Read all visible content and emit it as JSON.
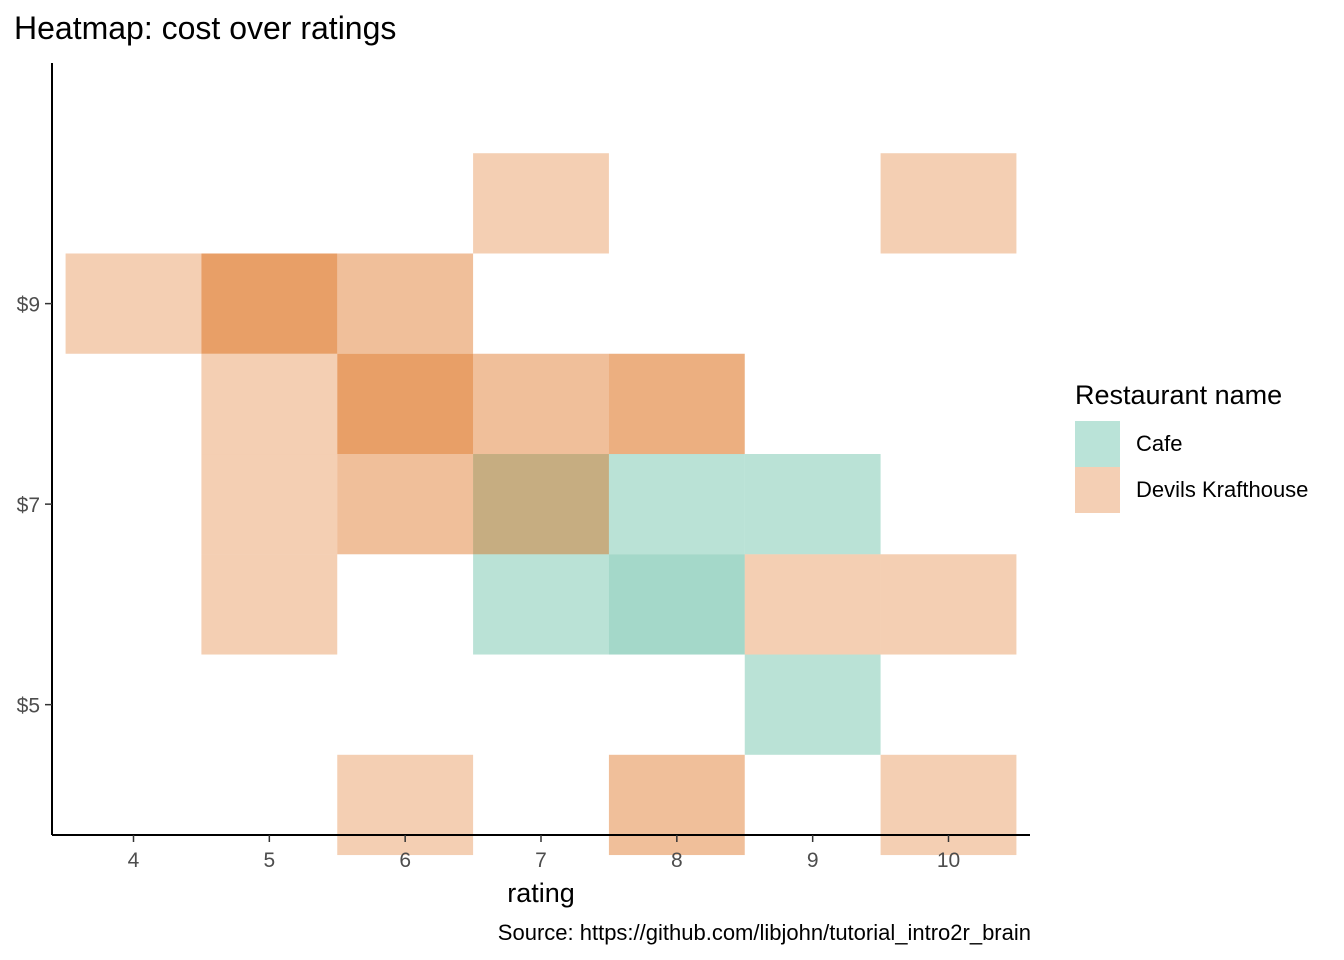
{
  "chart_data": {
    "type": "heatmap",
    "title": "Heatmap: cost over ratings",
    "xlabel": "rating",
    "ylabel": "",
    "caption": "Source: https://github.com/libjohn/tutorial_intro2r_brain",
    "x_ticks": [
      4,
      5,
      6,
      7,
      8,
      9,
      10
    ],
    "x_tick_labels": [
      "4",
      "5",
      "6",
      "7",
      "8",
      "9",
      "10"
    ],
    "y_ticks": [
      5,
      7,
      9
    ],
    "y_tick_labels": [
      "$5",
      "$7",
      "$9"
    ],
    "xlim": [
      3.4,
      10.6
    ],
    "ylim": [
      3.7,
      11.4
    ],
    "bin_width": 1,
    "legend": {
      "title": "Restaurant name",
      "placement": "right",
      "entries": [
        {
          "name": "Cafe",
          "color": "#bae3d8"
        },
        {
          "name": "Devils Krafthouse",
          "color": "#f4cfb4"
        }
      ]
    },
    "series": [
      {
        "name": "Cafe",
        "color": "#1b9e77",
        "cells": [
          {
            "rating": 7,
            "cost": 7,
            "count": 1
          },
          {
            "rating": 8,
            "cost": 7,
            "count": 1
          },
          {
            "rating": 9,
            "cost": 7,
            "count": 1
          },
          {
            "rating": 7,
            "cost": 6,
            "count": 1
          },
          {
            "rating": 8,
            "cost": 6,
            "count": 2
          },
          {
            "rating": 9,
            "cost": 5,
            "count": 1
          }
        ]
      },
      {
        "name": "Devils Krafthouse",
        "color": "#d95f02",
        "cells": [
          {
            "rating": 7,
            "cost": 10,
            "count": 1
          },
          {
            "rating": 10,
            "cost": 10,
            "count": 1
          },
          {
            "rating": 4,
            "cost": 9,
            "count": 1
          },
          {
            "rating": 5,
            "cost": 9,
            "count": 4
          },
          {
            "rating": 6,
            "cost": 9,
            "count": 2
          },
          {
            "rating": 5,
            "cost": 8,
            "count": 1
          },
          {
            "rating": 6,
            "cost": 8,
            "count": 4
          },
          {
            "rating": 7,
            "cost": 8,
            "count": 2
          },
          {
            "rating": 8,
            "cost": 8,
            "count": 3
          },
          {
            "rating": 5,
            "cost": 7,
            "count": 1
          },
          {
            "rating": 6,
            "cost": 7,
            "count": 2
          },
          {
            "rating": 7,
            "cost": 7,
            "count": 2
          },
          {
            "rating": 5,
            "cost": 6,
            "count": 1
          },
          {
            "rating": 9,
            "cost": 6,
            "count": 1
          },
          {
            "rating": 10,
            "cost": 6,
            "count": 1
          },
          {
            "rating": 6,
            "cost": 4,
            "count": 1
          },
          {
            "rating": 8,
            "cost": 4,
            "count": 2
          },
          {
            "rating": 10,
            "cost": 4,
            "count": 1
          }
        ]
      }
    ]
  }
}
